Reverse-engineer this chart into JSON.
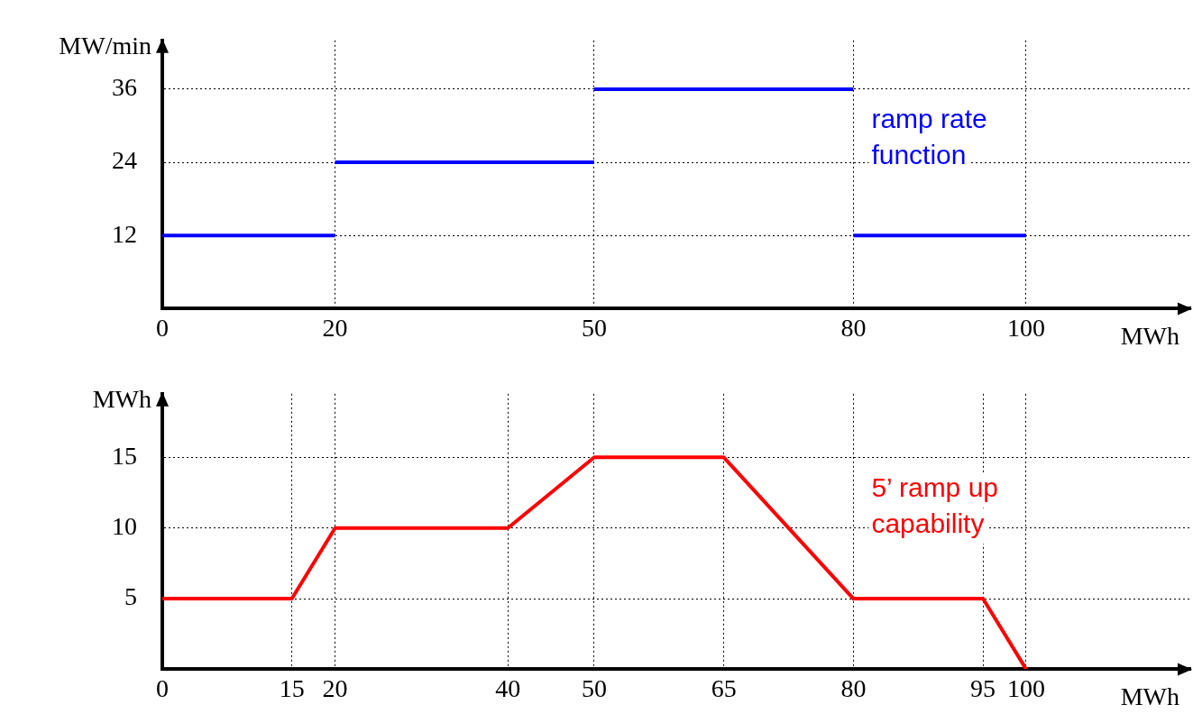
{
  "chart_data": [
    {
      "type": "line",
      "xlabel": "MWh",
      "ylabel": "MW/min",
      "xlim": [
        0,
        119
      ],
      "ylim": [
        0,
        44
      ],
      "xticks": [
        0,
        20,
        50,
        80,
        100
      ],
      "yticks": [
        12,
        24,
        36
      ],
      "grid": true,
      "marker": "none",
      "series": [
        {
          "color": "#0000ff",
          "x": [
            0,
            20
          ],
          "values": [
            12,
            12
          ]
        },
        {
          "color": "#0000ff",
          "x": [
            20,
            50
          ],
          "values": [
            24,
            24
          ]
        },
        {
          "name": "ramp rate function",
          "color": "#0000ff",
          "x": [
            50,
            80
          ],
          "values": [
            36,
            36
          ]
        },
        {
          "color": "#0000ff",
          "x": [
            80,
            100
          ],
          "values": [
            12,
            12
          ]
        }
      ]
    },
    {
      "type": "line",
      "xlabel": "MWh",
      "ylabel": "MWh",
      "x": [
        0,
        15,
        20,
        40,
        50,
        65,
        80,
        95,
        100
      ],
      "xlim": [
        0,
        119
      ],
      "ylim": [
        0,
        19.5
      ],
      "xticks": [
        0,
        15,
        20,
        40,
        50,
        65,
        80,
        95,
        100
      ],
      "yticks": [
        5,
        10,
        15
      ],
      "grid": true,
      "marker": "none",
      "series": [
        {
          "name": "5’ ramp up capability",
          "color": "#ff0000",
          "values": [
            5,
            5,
            10,
            10,
            15,
            15,
            5,
            5,
            0
          ]
        }
      ]
    }
  ]
}
